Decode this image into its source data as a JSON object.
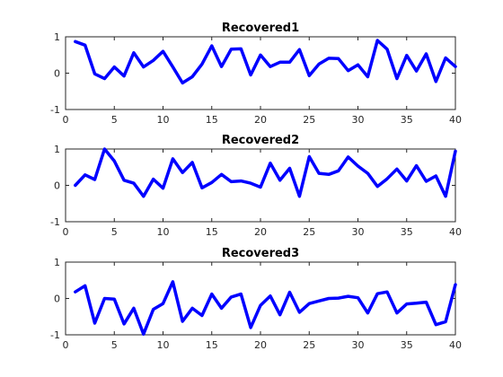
{
  "chart_data": [
    {
      "type": "line",
      "title": "Recovered1",
      "xlim": [
        0,
        40
      ],
      "ylim": [
        -1,
        1
      ],
      "xticks": [
        "0",
        "5",
        "10",
        "15",
        "20",
        "25",
        "30",
        "35",
        "40"
      ],
      "yticks": [
        "-1",
        "0",
        "1"
      ],
      "grid": false,
      "color": "#0000ff",
      "x": [
        1,
        2,
        3,
        4,
        5,
        6,
        7,
        8,
        9,
        10,
        11,
        12,
        13,
        14,
        15,
        16,
        17,
        18,
        19,
        20,
        21,
        22,
        23,
        24,
        25,
        26,
        27,
        28,
        29,
        30,
        31,
        32,
        33,
        34,
        35,
        36,
        37,
        38,
        39,
        40
      ],
      "values": [
        0.87,
        0.77,
        -0.02,
        -0.15,
        0.17,
        -0.08,
        0.56,
        0.17,
        0.35,
        0.6,
        0.17,
        -0.27,
        -0.1,
        0.25,
        0.75,
        0.18,
        0.66,
        0.67,
        -0.05,
        0.5,
        0.18,
        0.3,
        0.3,
        0.65,
        -0.07,
        0.25,
        0.41,
        0.4,
        0.07,
        0.23,
        -0.1,
        0.9,
        0.66,
        -0.15,
        0.49,
        0.06,
        0.53,
        -0.23,
        0.42,
        0.18
      ]
    },
    {
      "type": "line",
      "title": "Recovered2",
      "xlim": [
        0,
        40
      ],
      "ylim": [
        -1,
        1
      ],
      "xticks": [
        "0",
        "5",
        "10",
        "15",
        "20",
        "25",
        "30",
        "35",
        "40"
      ],
      "yticks": [
        "-1",
        "0",
        "1"
      ],
      "grid": false,
      "color": "#0000ff",
      "x": [
        1,
        2,
        3,
        4,
        5,
        6,
        7,
        8,
        9,
        10,
        11,
        12,
        13,
        14,
        15,
        16,
        17,
        18,
        19,
        20,
        21,
        22,
        23,
        24,
        25,
        26,
        27,
        28,
        29,
        30,
        31,
        32,
        33,
        34,
        35,
        36,
        37,
        38,
        39,
        40
      ],
      "values": [
        0.0,
        0.29,
        0.16,
        1.0,
        0.67,
        0.14,
        0.06,
        -0.3,
        0.17,
        -0.08,
        0.73,
        0.35,
        0.63,
        -0.07,
        0.08,
        0.3,
        0.1,
        0.12,
        0.06,
        -0.05,
        0.61,
        0.14,
        0.47,
        -0.3,
        0.79,
        0.33,
        0.3,
        0.4,
        0.78,
        0.53,
        0.33,
        -0.03,
        0.18,
        0.45,
        0.12,
        0.54,
        0.11,
        0.26,
        -0.3,
        0.94
      ]
    },
    {
      "type": "line",
      "title": "Recovered3",
      "xlim": [
        0,
        40
      ],
      "ylim": [
        -1,
        1
      ],
      "xticks": [
        "0",
        "5",
        "10",
        "15",
        "20",
        "25",
        "30",
        "35",
        "40"
      ],
      "yticks": [
        "-1",
        "0",
        "1"
      ],
      "grid": false,
      "color": "#0000ff",
      "x": [
        1,
        2,
        3,
        4,
        5,
        6,
        7,
        8,
        9,
        10,
        11,
        12,
        13,
        14,
        15,
        16,
        17,
        18,
        19,
        20,
        21,
        22,
        23,
        24,
        25,
        26,
        27,
        28,
        29,
        30,
        31,
        32,
        33,
        34,
        35,
        36,
        37,
        38,
        39,
        40
      ],
      "values": [
        0.18,
        0.35,
        -0.68,
        0.0,
        -0.02,
        -0.7,
        -0.27,
        -0.98,
        -0.3,
        -0.14,
        0.46,
        -0.63,
        -0.27,
        -0.47,
        0.12,
        -0.27,
        0.04,
        0.12,
        -0.8,
        -0.19,
        0.07,
        -0.45,
        0.17,
        -0.38,
        -0.14,
        -0.07,
        0.0,
        0.01,
        0.06,
        0.02,
        -0.4,
        0.13,
        0.18,
        -0.4,
        -0.15,
        -0.13,
        -0.1,
        -0.72,
        -0.64,
        0.38
      ]
    }
  ]
}
